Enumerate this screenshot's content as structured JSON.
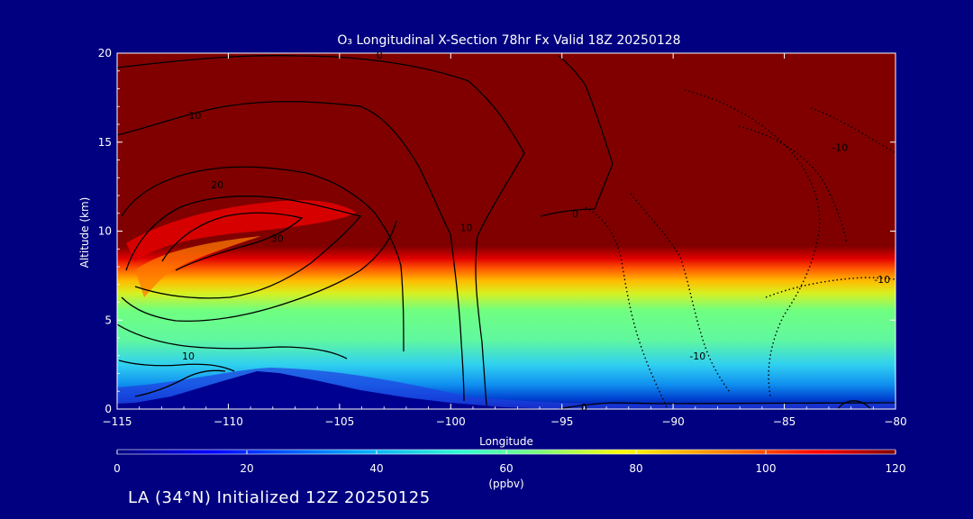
{
  "chart_data": {
    "type": "heatmap",
    "title": "O₃ Longitudinal X-Section 78hr  Fx Valid 18Z 20250128",
    "xlabel": "Longitude",
    "ylabel": "Altitude (km)",
    "xlim": [
      -115,
      -80
    ],
    "ylim": [
      0,
      20
    ],
    "x_ticks": [
      "−115",
      "−110",
      "−105",
      "−100",
      "−95",
      "−90",
      "−85",
      "−80"
    ],
    "y_ticks": [
      "0",
      "5",
      "10",
      "15",
      "20"
    ],
    "colorbar": {
      "label": "(ppbv)",
      "range": [
        0,
        120
      ],
      "ticks": [
        "0",
        "20",
        "40",
        "60",
        "80",
        "100",
        "120"
      ]
    },
    "contour_labels": [
      {
        "text": "0",
        "x": -103.2,
        "y": 19.9
      },
      {
        "text": "10",
        "x": -111.5,
        "y": 16.5
      },
      {
        "text": "20",
        "x": -110.5,
        "y": 12.6
      },
      {
        "text": "30",
        "x": -107.8,
        "y": 9.6
      },
      {
        "text": "10",
        "x": -99.3,
        "y": 10.2
      },
      {
        "text": "0",
        "x": -94.4,
        "y": 11.0
      },
      {
        "text": "-10",
        "x": -82.5,
        "y": 14.7
      },
      {
        "text": "-10",
        "x": -80.6,
        "y": 7.3
      },
      {
        "text": "-10",
        "x": -88.9,
        "y": 3.0
      },
      {
        "text": "10",
        "x": -111.8,
        "y": 3.0
      },
      {
        "text": "0",
        "x": -94.0,
        "y": 0.1
      }
    ],
    "terrain_peak": {
      "x": -108.5,
      "y": 2.1
    }
  },
  "footer": "LA (34°N) Initialized 12Z 20250125"
}
